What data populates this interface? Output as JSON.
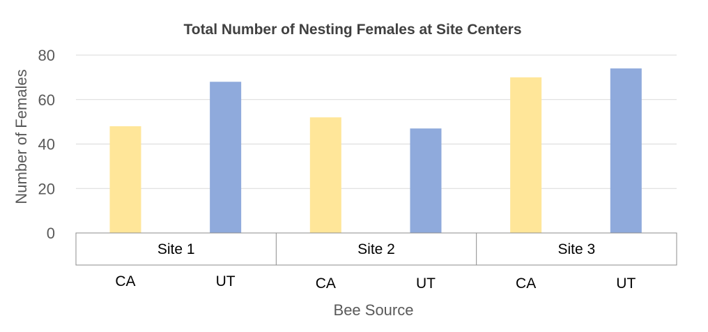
{
  "chart_data": {
    "type": "bar",
    "title": "Total Number of Nesting Females at Site Centers",
    "xlabel": "Bee Source",
    "ylabel": "Number of Females",
    "ylim": [
      0,
      80
    ],
    "yticks": [
      0,
      20,
      40,
      60,
      80
    ],
    "grid": true,
    "groups": [
      {
        "label": "Site 1",
        "bars": [
          {
            "category": "CA",
            "value": 48,
            "color": "#ffe699"
          },
          {
            "category": "UT",
            "value": 68,
            "color": "#8faadc"
          }
        ]
      },
      {
        "label": "Site 2",
        "bars": [
          {
            "category": "CA",
            "value": 52,
            "color": "#ffe699"
          },
          {
            "category": "UT",
            "value": 47,
            "color": "#8faadc"
          }
        ]
      },
      {
        "label": "Site 3",
        "bars": [
          {
            "category": "CA",
            "value": 70,
            "color": "#ffe699"
          },
          {
            "category": "UT",
            "value": 74,
            "color": "#8faadc"
          }
        ]
      }
    ]
  }
}
